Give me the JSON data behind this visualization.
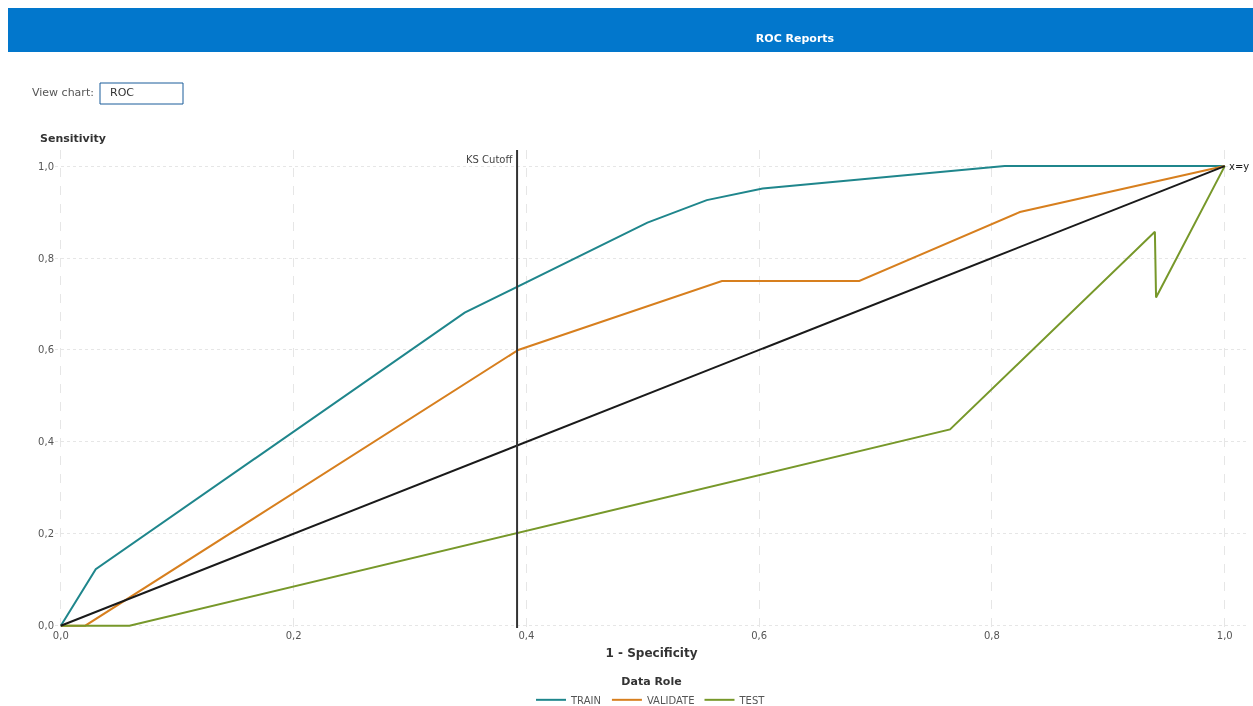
{
  "chart_data": {
    "type": "line",
    "title": "ROC Reports",
    "xlabel": "1 - Specificity",
    "ylabel": "Sensitivity",
    "legend_title": "Data Role",
    "annotations": [
      "View chart:",
      "ROC",
      {
        "text": "x=y",
        "x": 1.0,
        "y": 1.0
      }
    ],
    "series": [
      {
        "name": "TRAIN",
        "color": "#1f868c",
        "x": [
          0,
          0.03,
          0.347,
          0.504,
          0.555,
          0.603,
          0.811,
          1.0
        ],
        "values": [
          0,
          0.123,
          0.681,
          0.877,
          0.926,
          0.951,
          1.0,
          1.0
        ]
      },
      {
        "name": "VALIDATE",
        "color": "#d77f1e",
        "x": [
          0,
          0.021,
          0.393,
          0.568,
          0.686,
          0.824,
          1.0
        ],
        "values": [
          0,
          0,
          0.6,
          0.75,
          0.75,
          0.9,
          1.0
        ]
      },
      {
        "name": "TEST",
        "color": "#77982a",
        "x": [
          0,
          0.059,
          0.764,
          0.94,
          0.941,
          1.0
        ],
        "values": [
          0,
          0,
          0.427,
          0.857,
          0.714,
          1.0
        ]
      },
      {
        "color": "#1a1a1a",
        "x": [
          0,
          1.0
        ],
        "values": [
          0,
          1.0
        ]
      }
    ],
    "ref_lines": [
      {
        "axis": "x",
        "value": 0.392,
        "label": "KS Cutoff",
        "color": "#333333"
      }
    ],
    "xlim": [
      -0.005,
      1.02
    ],
    "ylim": [
      -0.005,
      1.035
    ],
    "xticks": [
      {
        "value": 0,
        "label": "0,0"
      },
      {
        "value": 0.2,
        "label": "0,2"
      },
      {
        "value": 0.4,
        "label": "0,4"
      },
      {
        "value": 0.6,
        "label": "0,6"
      },
      {
        "value": 0.8,
        "label": "0,8"
      },
      {
        "value": 1.0,
        "label": "1,0"
      }
    ],
    "yticks": [
      {
        "value": 0,
        "label": "0,0"
      },
      {
        "value": 0.2,
        "label": "0,2"
      },
      {
        "value": 0.4,
        "label": "0,4"
      },
      {
        "value": 0.6,
        "label": "0,6"
      },
      {
        "value": 0.8,
        "label": "0,8"
      },
      {
        "value": 1.0,
        "label": "1,0"
      }
    ],
    "grid": true,
    "legend": "bottom"
  }
}
